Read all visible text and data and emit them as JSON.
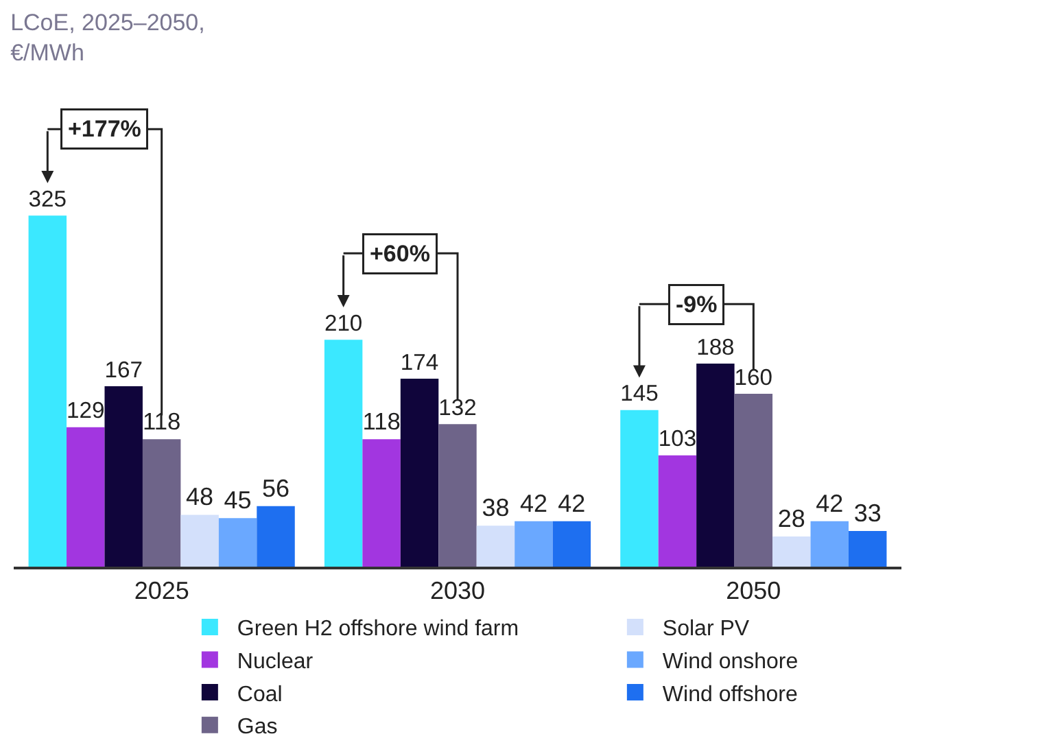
{
  "chart_data": {
    "type": "bar",
    "title": "LCoE, 2025–2050,\n€/MWh",
    "categories": [
      "2025",
      "2030",
      "2050"
    ],
    "series": [
      {
        "name": "Green H2 offshore wind farm",
        "color": "#3be8ff",
        "values": [
          325,
          210,
          145
        ]
      },
      {
        "name": "Nuclear",
        "color": "#a236e0",
        "values": [
          129,
          118,
          103
        ]
      },
      {
        "name": "Coal",
        "color": "#10053b",
        "values": [
          167,
          174,
          188
        ]
      },
      {
        "name": "Gas",
        "color": "#6e6489",
        "values": [
          118,
          132,
          160
        ]
      },
      {
        "name": "Solar PV",
        "color": "#d3e0fb",
        "values": [
          48,
          38,
          28
        ]
      },
      {
        "name": "Wind onshore",
        "color": "#6aa8ff",
        "values": [
          45,
          42,
          42
        ]
      },
      {
        "name": "Wind offshore",
        "color": "#1e6ff0",
        "values": [
          56,
          42,
          33
        ]
      }
    ],
    "annotations": [
      "+177%",
      "+60%",
      "-9%"
    ],
    "data_labels": true,
    "legend": "bottom"
  }
}
